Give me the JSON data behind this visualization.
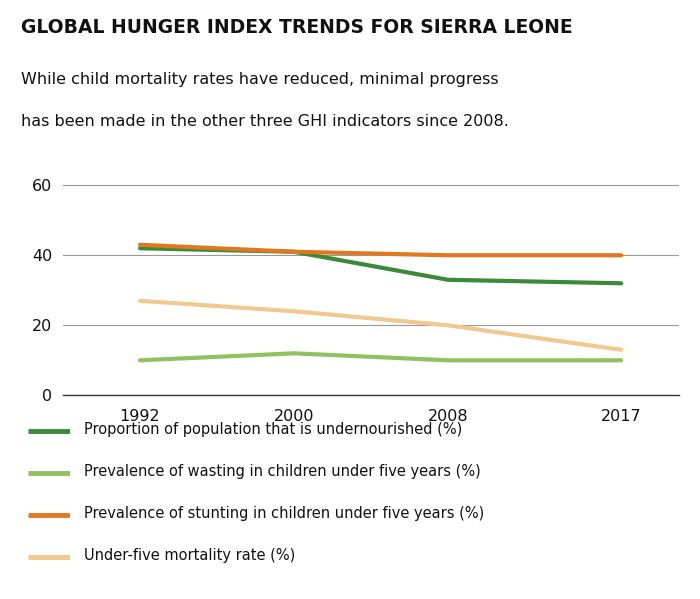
{
  "title": "GLOBAL HUNGER INDEX TRENDS FOR SIERRA LEONE",
  "subtitle_line1": "While child mortality rates have reduced, minimal progress",
  "subtitle_line2": "has been made in the other three GHI indicators since 2008.",
  "years": [
    1992,
    2000,
    2008,
    2017
  ],
  "undernourished": [
    42,
    41,
    33,
    32
  ],
  "wasting": [
    10,
    12,
    10,
    10
  ],
  "stunting": [
    43,
    41,
    40,
    40
  ],
  "mortality": [
    27,
    24,
    20,
    13
  ],
  "color_undernourished": "#3a8a3a",
  "color_wasting": "#90c060",
  "color_stunting": "#e07820",
  "color_mortality": "#f0c890",
  "ylim": [
    0,
    65
  ],
  "yticks": [
    0,
    20,
    40,
    60
  ],
  "xticks": [
    1992,
    2000,
    2008,
    2017
  ],
  "xlim_left": 1988,
  "xlim_right": 2020,
  "line_width": 3.0,
  "background_color": "#ffffff",
  "grid_color": "#999999",
  "legend_labels": [
    "Proportion of population that is undernourished (%)",
    "Prevalence of wasting in children under five years (%)",
    "Prevalence of stunting in children under five years (%)",
    "Under-five mortality rate (%)"
  ],
  "legend_colors": [
    "#3a8a3a",
    "#90c060",
    "#e07820",
    "#f0c890"
  ]
}
